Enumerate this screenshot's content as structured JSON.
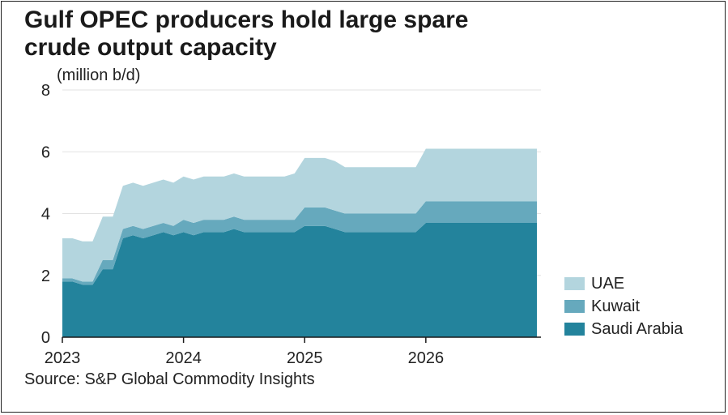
{
  "title_lines": [
    "Gulf OPEC producers hold large spare",
    "crude output capacity"
  ],
  "unit_label": "(million b/d)",
  "source": "Source: S&P Global Commodity Insights",
  "colors": {
    "saudi": "#23839c",
    "kuwait": "#66a9bd",
    "uae": "#b3d5de",
    "grid": "#e2e2e2",
    "axis": "#1a1a1a"
  },
  "chart_data": {
    "type": "area",
    "stacked": true,
    "x": [
      "2023-01",
      "2023-02",
      "2023-03",
      "2023-04",
      "2023-05",
      "2023-06",
      "2023-07",
      "2023-08",
      "2023-09",
      "2023-10",
      "2023-11",
      "2023-12",
      "2024-01",
      "2024-02",
      "2024-03",
      "2024-04",
      "2024-05",
      "2024-06",
      "2024-07",
      "2024-08",
      "2024-09",
      "2024-10",
      "2024-11",
      "2024-12",
      "2025-01",
      "2025-02",
      "2025-03",
      "2025-04",
      "2025-05",
      "2025-06",
      "2025-07",
      "2025-08",
      "2025-09",
      "2025-10",
      "2025-11",
      "2025-12",
      "2026-01",
      "2026-02",
      "2026-03",
      "2026-04",
      "2026-05",
      "2026-06",
      "2026-07",
      "2026-08",
      "2026-09",
      "2026-10",
      "2026-11",
      "2026-12"
    ],
    "series": [
      {
        "name": "Saudi Arabia",
        "values": [
          1.8,
          1.8,
          1.7,
          1.7,
          2.2,
          2.2,
          3.2,
          3.3,
          3.2,
          3.3,
          3.4,
          3.3,
          3.4,
          3.3,
          3.4,
          3.4,
          3.4,
          3.5,
          3.4,
          3.4,
          3.4,
          3.4,
          3.4,
          3.4,
          3.6,
          3.6,
          3.6,
          3.5,
          3.4,
          3.4,
          3.4,
          3.4,
          3.4,
          3.4,
          3.4,
          3.4,
          3.7,
          3.7,
          3.7,
          3.7,
          3.7,
          3.7,
          3.7,
          3.7,
          3.7,
          3.7,
          3.7,
          3.7
        ]
      },
      {
        "name": "Kuwait",
        "values": [
          0.1,
          0.1,
          0.1,
          0.1,
          0.3,
          0.3,
          0.3,
          0.3,
          0.3,
          0.3,
          0.3,
          0.3,
          0.4,
          0.4,
          0.4,
          0.4,
          0.4,
          0.4,
          0.4,
          0.4,
          0.4,
          0.4,
          0.4,
          0.4,
          0.6,
          0.6,
          0.6,
          0.6,
          0.6,
          0.6,
          0.6,
          0.6,
          0.6,
          0.6,
          0.6,
          0.6,
          0.7,
          0.7,
          0.7,
          0.7,
          0.7,
          0.7,
          0.7,
          0.7,
          0.7,
          0.7,
          0.7,
          0.7
        ]
      },
      {
        "name": "UAE",
        "values": [
          1.3,
          1.3,
          1.3,
          1.3,
          1.4,
          1.4,
          1.4,
          1.4,
          1.4,
          1.4,
          1.4,
          1.4,
          1.4,
          1.4,
          1.4,
          1.4,
          1.4,
          1.4,
          1.4,
          1.4,
          1.4,
          1.4,
          1.4,
          1.5,
          1.6,
          1.6,
          1.6,
          1.6,
          1.5,
          1.5,
          1.5,
          1.5,
          1.5,
          1.5,
          1.5,
          1.5,
          1.7,
          1.7,
          1.7,
          1.7,
          1.7,
          1.7,
          1.7,
          1.7,
          1.7,
          1.7,
          1.7,
          1.7
        ]
      }
    ],
    "legend_order": [
      "UAE",
      "Kuwait",
      "Saudi Arabia"
    ],
    "x_ticks": [
      "2023",
      "2024",
      "2025",
      "2026"
    ],
    "y_ticks": [
      0,
      2,
      4,
      6,
      8
    ],
    "ylim": [
      0,
      8
    ],
    "ylabel": "(million b/d)",
    "title": "Gulf OPEC producers hold large spare crude output capacity",
    "grid": true,
    "legend_position": "right"
  }
}
